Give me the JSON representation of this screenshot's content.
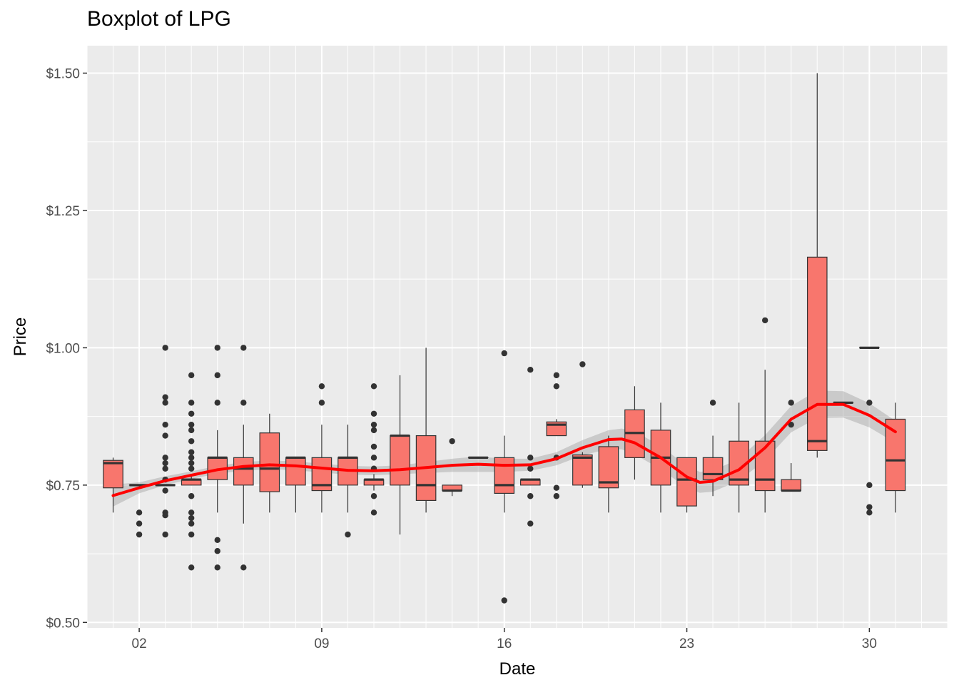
{
  "chart_data": {
    "type": "boxplot",
    "title": "Boxplot of LPG",
    "xlabel": "Date",
    "ylabel": "Price",
    "x_tick_labels": [
      "02",
      "09",
      "16",
      "23",
      "30"
    ],
    "x_tick_values": [
      2,
      9,
      16,
      23,
      30
    ],
    "y_tick_labels": [
      "$0.50",
      "$0.75",
      "$1.00",
      "$1.25",
      "$1.50"
    ],
    "y_tick_values": [
      0.5,
      0.75,
      1.0,
      1.25,
      1.5
    ],
    "xlim": [
      0,
      33
    ],
    "ylim": [
      0.49,
      1.55
    ],
    "grid": true,
    "box_color": "#F8766D",
    "smooth_color": "#FF0000",
    "boxes": [
      {
        "day": 1,
        "whislo": 0.7,
        "q1": 0.745,
        "med": 0.79,
        "q3": 0.795,
        "whishi": 0.8,
        "outliers": []
      },
      {
        "day": 2,
        "whislo": 0.75,
        "q1": 0.75,
        "med": 0.75,
        "q3": 0.75,
        "whishi": 0.75,
        "outliers": [
          0.7,
          0.68,
          0.66
        ]
      },
      {
        "day": 3,
        "whislo": 0.75,
        "q1": 0.75,
        "med": 0.75,
        "q3": 0.75,
        "whishi": 0.75,
        "outliers": [
          1.0,
          0.91,
          0.9,
          0.86,
          0.84,
          0.8,
          0.79,
          0.78,
          0.76,
          0.74,
          0.7,
          0.695,
          0.66
        ]
      },
      {
        "day": 4,
        "whislo": 0.75,
        "q1": 0.75,
        "med": 0.76,
        "q3": 0.76,
        "whishi": 0.77,
        "outliers": [
          0.95,
          0.9,
          0.88,
          0.86,
          0.85,
          0.83,
          0.81,
          0.8,
          0.79,
          0.78,
          0.73,
          0.7,
          0.69,
          0.68,
          0.66,
          0.6
        ]
      },
      {
        "day": 5,
        "whislo": 0.7,
        "q1": 0.76,
        "med": 0.8,
        "q3": 0.8,
        "whishi": 0.85,
        "outliers": [
          1.0,
          0.95,
          0.9,
          0.65,
          0.63,
          0.6
        ]
      },
      {
        "day": 6,
        "whislo": 0.68,
        "q1": 0.75,
        "med": 0.78,
        "q3": 0.8,
        "whishi": 0.86,
        "outliers": [
          1.0,
          0.9,
          0.6
        ]
      },
      {
        "day": 7,
        "whislo": 0.7,
        "q1": 0.738,
        "med": 0.78,
        "q3": 0.845,
        "whishi": 0.88,
        "outliers": []
      },
      {
        "day": 8,
        "whislo": 0.7,
        "q1": 0.75,
        "med": 0.8,
        "q3": 0.8,
        "whishi": 0.8,
        "outliers": []
      },
      {
        "day": 9,
        "whislo": 0.7,
        "q1": 0.74,
        "med": 0.75,
        "q3": 0.8,
        "whishi": 0.86,
        "outliers": [
          0.93,
          0.9
        ]
      },
      {
        "day": 10,
        "whislo": 0.7,
        "q1": 0.75,
        "med": 0.8,
        "q3": 0.8,
        "whishi": 0.86,
        "outliers": [
          0.66
        ]
      },
      {
        "day": 11,
        "whislo": 0.74,
        "q1": 0.75,
        "med": 0.76,
        "q3": 0.76,
        "whishi": 0.77,
        "outliers": [
          0.93,
          0.88,
          0.86,
          0.85,
          0.82,
          0.8,
          0.78,
          0.73,
          0.7
        ]
      },
      {
        "day": 12,
        "whislo": 0.66,
        "q1": 0.75,
        "med": 0.84,
        "q3": 0.84,
        "whishi": 0.95,
        "outliers": []
      },
      {
        "day": 13,
        "whislo": 0.7,
        "q1": 0.722,
        "med": 0.75,
        "q3": 0.84,
        "whishi": 1.0,
        "outliers": []
      },
      {
        "day": 14,
        "whislo": 0.73,
        "q1": 0.74,
        "med": 0.74,
        "q3": 0.75,
        "whishi": 0.75,
        "outliers": [
          0.83
        ]
      },
      {
        "day": 15,
        "whislo": 0.8,
        "q1": 0.8,
        "med": 0.8,
        "q3": 0.8,
        "whishi": 0.8,
        "outliers": []
      },
      {
        "day": 16,
        "whislo": 0.7,
        "q1": 0.735,
        "med": 0.75,
        "q3": 0.8,
        "whishi": 0.84,
        "outliers": [
          0.99,
          0.54
        ]
      },
      {
        "day": 17,
        "whislo": 0.75,
        "q1": 0.75,
        "med": 0.76,
        "q3": 0.76,
        "whishi": 0.76,
        "outliers": [
          0.96,
          0.8,
          0.78,
          0.73,
          0.68
        ]
      },
      {
        "day": 18,
        "whislo": 0.84,
        "q1": 0.84,
        "med": 0.86,
        "q3": 0.865,
        "whishi": 0.87,
        "outliers": [
          0.95,
          0.93,
          0.8,
          0.745,
          0.73
        ]
      },
      {
        "day": 19,
        "whislo": 0.745,
        "q1": 0.75,
        "med": 0.8,
        "q3": 0.805,
        "whishi": 0.81,
        "outliers": [
          0.97
        ]
      },
      {
        "day": 20,
        "whislo": 0.7,
        "q1": 0.745,
        "med": 0.755,
        "q3": 0.82,
        "whishi": 0.84,
        "outliers": []
      },
      {
        "day": 21,
        "whislo": 0.76,
        "q1": 0.8,
        "med": 0.845,
        "q3": 0.887,
        "whishi": 0.93,
        "outliers": []
      },
      {
        "day": 22,
        "whislo": 0.7,
        "q1": 0.75,
        "med": 0.8,
        "q3": 0.85,
        "whishi": 0.9,
        "outliers": []
      },
      {
        "day": 23,
        "whislo": 0.7,
        "q1": 0.712,
        "med": 0.76,
        "q3": 0.8,
        "whishi": 0.8,
        "outliers": []
      },
      {
        "day": 24,
        "whislo": 0.73,
        "q1": 0.76,
        "med": 0.77,
        "q3": 0.8,
        "whishi": 0.84,
        "outliers": [
          0.9
        ]
      },
      {
        "day": 25,
        "whislo": 0.7,
        "q1": 0.75,
        "med": 0.76,
        "q3": 0.83,
        "whishi": 0.9,
        "outliers": []
      },
      {
        "day": 26,
        "whislo": 0.7,
        "q1": 0.74,
        "med": 0.76,
        "q3": 0.83,
        "whishi": 0.96,
        "outliers": [
          1.05
        ]
      },
      {
        "day": 27,
        "whislo": 0.74,
        "q1": 0.74,
        "med": 0.74,
        "q3": 0.76,
        "whishi": 0.79,
        "outliers": [
          0.9,
          0.86
        ]
      },
      {
        "day": 28,
        "whislo": 0.8,
        "q1": 0.813,
        "med": 0.83,
        "q3": 1.165,
        "whishi": 1.5,
        "outliers": []
      },
      {
        "day": 29,
        "whislo": 0.9,
        "q1": 0.9,
        "med": 0.9,
        "q3": 0.9,
        "whishi": 0.9,
        "outliers": []
      },
      {
        "day": 30,
        "whislo": 1.0,
        "q1": 1.0,
        "med": 1.0,
        "q3": 1.0,
        "whishi": 1.0,
        "outliers": [
          0.9,
          0.75,
          0.71,
          0.7
        ]
      },
      {
        "day": 31,
        "whislo": 0.7,
        "q1": 0.74,
        "med": 0.795,
        "q3": 0.87,
        "whishi": 0.9,
        "outliers": []
      }
    ],
    "smooth_line": [
      {
        "x": 1,
        "y": 0.731
      },
      {
        "x": 2,
        "y": 0.745
      },
      {
        "x": 3,
        "y": 0.758
      },
      {
        "x": 4,
        "y": 0.768
      },
      {
        "x": 5,
        "y": 0.778
      },
      {
        "x": 6,
        "y": 0.784
      },
      {
        "x": 7,
        "y": 0.787
      },
      {
        "x": 8,
        "y": 0.785
      },
      {
        "x": 9,
        "y": 0.781
      },
      {
        "x": 10,
        "y": 0.777
      },
      {
        "x": 11,
        "y": 0.776
      },
      {
        "x": 12,
        "y": 0.778
      },
      {
        "x": 13,
        "y": 0.782
      },
      {
        "x": 14,
        "y": 0.786
      },
      {
        "x": 15,
        "y": 0.788
      },
      {
        "x": 16,
        "y": 0.786
      },
      {
        "x": 17,
        "y": 0.787
      },
      {
        "x": 18,
        "y": 0.798
      },
      {
        "x": 19,
        "y": 0.818
      },
      {
        "x": 20,
        "y": 0.833
      },
      {
        "x": 20.5,
        "y": 0.834
      },
      {
        "x": 21,
        "y": 0.827
      },
      {
        "x": 22,
        "y": 0.8
      },
      {
        "x": 23,
        "y": 0.765
      },
      {
        "x": 23.5,
        "y": 0.755
      },
      {
        "x": 24,
        "y": 0.757
      },
      {
        "x": 25,
        "y": 0.778
      },
      {
        "x": 26,
        "y": 0.818
      },
      {
        "x": 27,
        "y": 0.87
      },
      {
        "x": 28,
        "y": 0.897
      },
      {
        "x": 29,
        "y": 0.897
      },
      {
        "x": 30,
        "y": 0.877
      },
      {
        "x": 31,
        "y": 0.847
      }
    ],
    "confidence_band": [
      {
        "x": 1,
        "lo": 0.711,
        "hi": 0.751
      },
      {
        "x": 2,
        "lo": 0.735,
        "hi": 0.755
      },
      {
        "x": 3,
        "lo": 0.75,
        "hi": 0.766
      },
      {
        "x": 4,
        "lo": 0.761,
        "hi": 0.775
      },
      {
        "x": 5,
        "lo": 0.771,
        "hi": 0.785
      },
      {
        "x": 6,
        "lo": 0.776,
        "hi": 0.792
      },
      {
        "x": 7,
        "lo": 0.779,
        "hi": 0.795
      },
      {
        "x": 8,
        "lo": 0.777,
        "hi": 0.793
      },
      {
        "x": 9,
        "lo": 0.773,
        "hi": 0.789
      },
      {
        "x": 10,
        "lo": 0.769,
        "hi": 0.785
      },
      {
        "x": 11,
        "lo": 0.768,
        "hi": 0.784
      },
      {
        "x": 12,
        "lo": 0.77,
        "hi": 0.786
      },
      {
        "x": 13,
        "lo": 0.772,
        "hi": 0.792
      },
      {
        "x": 14,
        "lo": 0.774,
        "hi": 0.798
      },
      {
        "x": 15,
        "lo": 0.774,
        "hi": 0.802
      },
      {
        "x": 16,
        "lo": 0.774,
        "hi": 0.798
      },
      {
        "x": 17,
        "lo": 0.776,
        "hi": 0.798
      },
      {
        "x": 18,
        "lo": 0.786,
        "hi": 0.81
      },
      {
        "x": 19,
        "lo": 0.804,
        "hi": 0.832
      },
      {
        "x": 20,
        "lo": 0.816,
        "hi": 0.85
      },
      {
        "x": 20.5,
        "lo": 0.815,
        "hi": 0.853
      },
      {
        "x": 21,
        "lo": 0.806,
        "hi": 0.848
      },
      {
        "x": 22,
        "lo": 0.779,
        "hi": 0.821
      },
      {
        "x": 23,
        "lo": 0.745,
        "hi": 0.785
      },
      {
        "x": 23.5,
        "lo": 0.736,
        "hi": 0.774
      },
      {
        "x": 24,
        "lo": 0.738,
        "hi": 0.776
      },
      {
        "x": 25,
        "lo": 0.758,
        "hi": 0.798
      },
      {
        "x": 26,
        "lo": 0.795,
        "hi": 0.841
      },
      {
        "x": 27,
        "lo": 0.846,
        "hi": 0.894
      },
      {
        "x": 28,
        "lo": 0.872,
        "hi": 0.922
      },
      {
        "x": 29,
        "lo": 0.873,
        "hi": 0.921
      },
      {
        "x": 30,
        "lo": 0.855,
        "hi": 0.899
      },
      {
        "x": 31,
        "lo": 0.827,
        "hi": 0.867
      }
    ]
  }
}
